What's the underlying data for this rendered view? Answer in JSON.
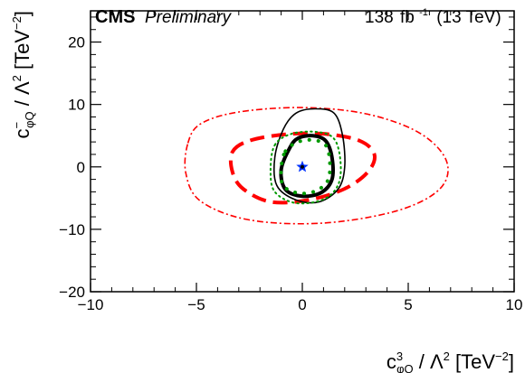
{
  "chart_data": {
    "type": "contour",
    "experiment": "CMS",
    "status": "Preliminary",
    "luminosity": "138",
    "luminosity_unit": "fb",
    "luminosity_exponent": "-1",
    "energy": "(13 TeV)",
    "xlabel_main": "c",
    "xlabel_sup": "3",
    "xlabel_sub": "φQ",
    "xlabel_rest": " / Λ",
    "xlabel_pow": "2",
    "xlabel_unit_open": " [TeV",
    "xlabel_unit_pow": "−2",
    "xlabel_unit_close": "]",
    "ylabel_main": "c",
    "ylabel_sup": "−",
    "ylabel_sub": "φQ",
    "ylabel_rest": " / Λ",
    "ylabel_pow": "2",
    "ylabel_unit_open": " [TeV",
    "ylabel_unit_pow": "−2",
    "ylabel_unit_close": "]",
    "xlim": [
      -10,
      10
    ],
    "ylim": [
      -20,
      25
    ],
    "xticks": [
      {
        "value": -10,
        "label": "−10"
      },
      {
        "value": -5,
        "label": "−5"
      },
      {
        "value": 0,
        "label": "0"
      },
      {
        "value": 5,
        "label": "5"
      },
      {
        "value": 10,
        "label": "10"
      }
    ],
    "yticks": [
      {
        "value": -20,
        "label": "−20"
      },
      {
        "value": -10,
        "label": "−10"
      },
      {
        "value": 0,
        "label": "0"
      },
      {
        "value": 10,
        "label": "10"
      },
      {
        "value": 20,
        "label": "20"
      }
    ],
    "contours": [
      {
        "id": "red-outer-dashdot",
        "color": "#ff0000",
        "style": "dashdot",
        "width": 1.6,
        "points": [
          [
            -5.4,
            3.8
          ],
          [
            -4.8,
            6.9
          ],
          [
            -3,
            8.8
          ],
          [
            0,
            9.5
          ],
          [
            3,
            8.5
          ],
          [
            5.5,
            5.5
          ],
          [
            6.8,
            1
          ],
          [
            6.5,
            -3.5
          ],
          [
            4.5,
            -7
          ],
          [
            1,
            -9
          ],
          [
            -2.5,
            -8.5
          ],
          [
            -4.8,
            -5.5
          ],
          [
            -5.5,
            -1
          ]
        ]
      },
      {
        "id": "red-inner-dashed",
        "color": "#ff0000",
        "style": "dashed",
        "width": 4,
        "points": [
          [
            -3.3,
            2.4
          ],
          [
            -2.5,
            4.2
          ],
          [
            -0.8,
            5.2
          ],
          [
            1,
            5.3
          ],
          [
            2.7,
            4.2
          ],
          [
            3.4,
            2
          ],
          [
            3.1,
            -0.8
          ],
          [
            2,
            -3.5
          ],
          [
            0.3,
            -5.3
          ],
          [
            -1.5,
            -5.6
          ],
          [
            -2.8,
            -3.5
          ],
          [
            -3.3,
            -0.8
          ]
        ]
      },
      {
        "id": "black-outer-solid",
        "color": "#000000",
        "style": "solid",
        "width": 1.6,
        "points": [
          [
            -0.9,
            6
          ],
          [
            -0.3,
            8.6
          ],
          [
            0.6,
            9.3
          ],
          [
            1.5,
            8.6
          ],
          [
            1.9,
            5
          ],
          [
            2,
            0
          ],
          [
            1.7,
            -3.5
          ],
          [
            0.8,
            -5.6
          ],
          [
            -0.3,
            -5.3
          ],
          [
            -1.2,
            -3
          ],
          [
            -1.3,
            1.5
          ]
        ]
      },
      {
        "id": "black-inner-solid",
        "color": "#000000",
        "style": "solid",
        "width": 4,
        "points": [
          [
            -0.6,
            3
          ],
          [
            -0.2,
            4.6
          ],
          [
            0.5,
            5
          ],
          [
            1.1,
            4.2
          ],
          [
            1.4,
            1.5
          ],
          [
            1.4,
            -2
          ],
          [
            0.9,
            -4.1
          ],
          [
            0,
            -4.7
          ],
          [
            -0.8,
            -3.6
          ],
          [
            -1,
            -0.5
          ]
        ]
      },
      {
        "id": "green-outer-dotted",
        "color": "#009900",
        "style": "dotted",
        "width": 2,
        "points": [
          [
            -1.3,
            3.5
          ],
          [
            -0.5,
            5.3
          ],
          [
            0.7,
            5.6
          ],
          [
            1.5,
            4.5
          ],
          [
            1.8,
            1
          ],
          [
            1.7,
            -2.8
          ],
          [
            1,
            -5.2
          ],
          [
            -0.3,
            -5.8
          ],
          [
            -1.3,
            -4
          ],
          [
            -1.5,
            -0.5
          ]
        ]
      },
      {
        "id": "green-inner-dotted",
        "color": "#009900",
        "style": "dotted-bold",
        "width": 4,
        "points": [
          [
            -0.8,
            2.5
          ],
          [
            -0.2,
            4
          ],
          [
            0.5,
            4.3
          ],
          [
            1.1,
            3.5
          ],
          [
            1.3,
            0.8
          ],
          [
            1.2,
            -2.2
          ],
          [
            0.6,
            -3.9
          ],
          [
            -0.2,
            -4.2
          ],
          [
            -0.9,
            -3
          ],
          [
            -1,
            -0.3
          ]
        ]
      }
    ],
    "markers": [
      {
        "id": "best-fit-star",
        "symbol": "star",
        "color": "#0033ff",
        "x": 0,
        "y": 0
      },
      {
        "id": "sm-point",
        "symbol": "dot",
        "color": "#000000",
        "x": 0,
        "y": 0
      }
    ]
  }
}
